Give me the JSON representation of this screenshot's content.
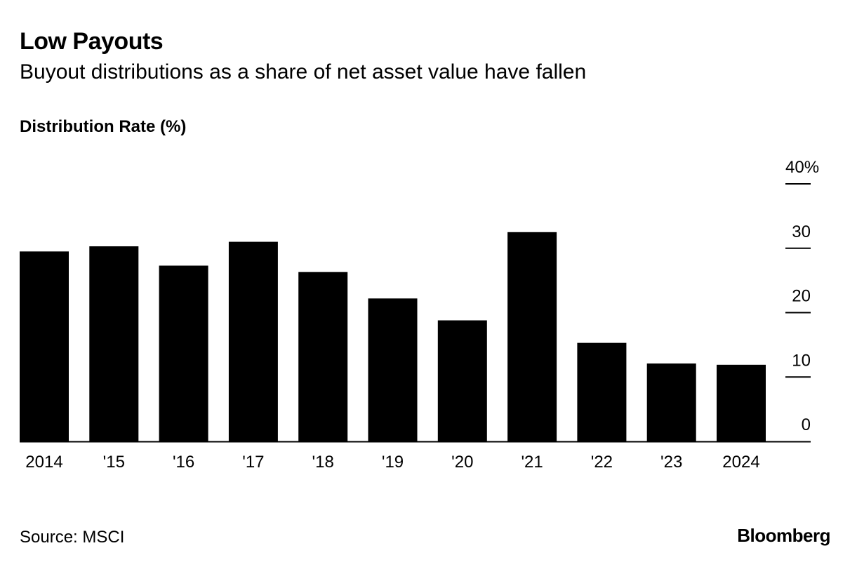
{
  "title": "Low Payouts",
  "subtitle": "Buyout distributions as a share of net asset value have fallen",
  "source": "Source: MSCI",
  "brand": "Bloomberg",
  "colors": {
    "bar": "#000000",
    "background": "#ffffff",
    "text": "#000000"
  },
  "chart_data": {
    "type": "bar",
    "ylabel": "Distribution Rate (%)",
    "categories": [
      "2014",
      "'15",
      "'16",
      "'17",
      "'18",
      "'19",
      "'20",
      "'21",
      "'22",
      "'23",
      "2024"
    ],
    "values": [
      29.5,
      30.3,
      27.3,
      31.0,
      26.3,
      22.2,
      18.8,
      32.5,
      15.3,
      12.1,
      11.9
    ],
    "ylim": [
      0,
      40
    ],
    "yticks": [
      0,
      10,
      20,
      30,
      40
    ],
    "ytick_labels": [
      "0",
      "10",
      "20",
      "30",
      "40%"
    ],
    "axis_position": "right",
    "grid": false,
    "legend": "none"
  }
}
